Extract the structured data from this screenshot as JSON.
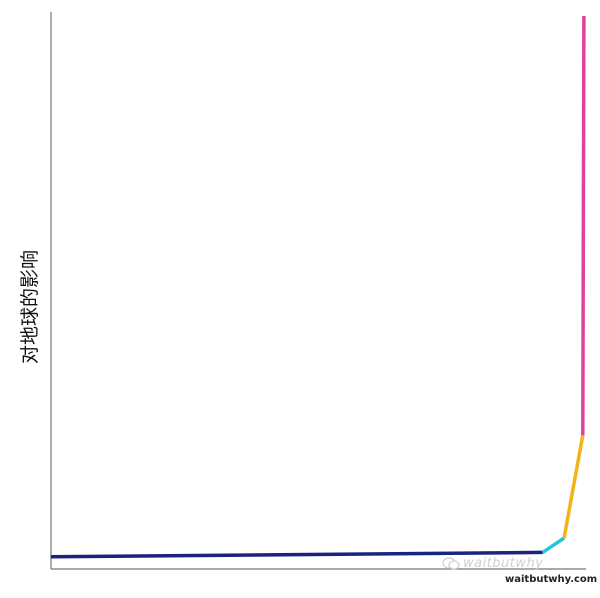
{
  "chart_data": {
    "type": "line",
    "title": "",
    "xlabel": "",
    "ylabel": "对地球的影响",
    "xlim": [
      0,
      100
    ],
    "ylim": [
      0,
      100
    ],
    "grid": false,
    "series": [
      {
        "color": "#1a237e",
        "x": [
          0,
          91.9
        ],
        "y": [
          2.2,
          3.0
        ]
      },
      {
        "color": "#26c6da",
        "x": [
          91.9,
          95.9
        ],
        "y": [
          3.0,
          5.6
        ]
      },
      {
        "color": "#f2b41a",
        "x": [
          95.9,
          99.4
        ],
        "y": [
          5.6,
          24.2
        ]
      },
      {
        "color": "#e040a0",
        "x": [
          99.4,
          99.6
        ],
        "y": [
          24.2,
          100
        ]
      }
    ]
  },
  "watermark": {
    "text": "waitbutwhy",
    "icon": "wechat-icon"
  },
  "credit": "waitbutwhy.com"
}
